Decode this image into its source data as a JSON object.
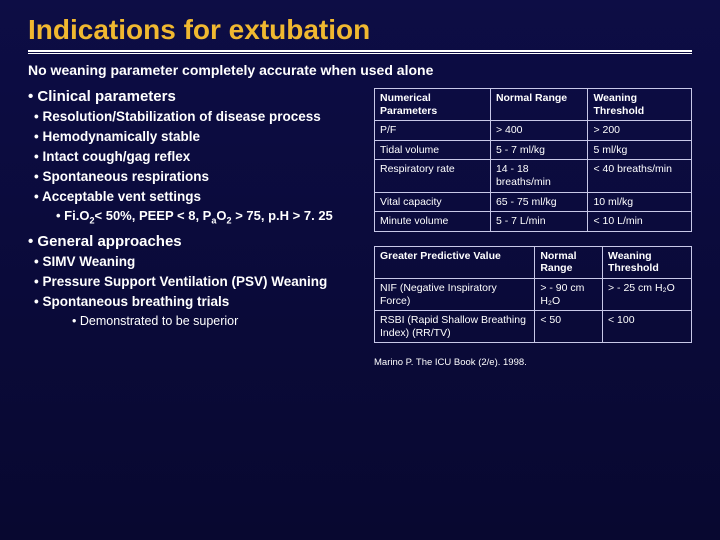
{
  "title": "Indications for extubation",
  "subtitle": "No weaning parameter completely accurate when used alone",
  "left": {
    "sec1": "Clinical parameters",
    "i1": "Resolution/Stabilization of disease process",
    "i2": "Hemodynamically stable",
    "i3": "Intact cough/gag reflex",
    "i4": "Spontaneous respirations",
    "i5": "Acceptable vent settings",
    "i5a_html": "Fi.O<sub>2</sub>&lt; 50%, PEEP &lt; 8, P<sub>a</sub>O<sub>2</sub> &gt; 75, p.H &gt; 7. 25",
    "sec2": "General approaches",
    "g1": "SIMV Weaning",
    "g2": "Pressure Support Ventilation (PSV) Weaning",
    "g3": "Spontaneous breathing trials",
    "g3a": "Demonstrated to be superior"
  },
  "table1": {
    "h1": "Numerical Parameters",
    "h2": "Normal Range",
    "h3": "Weaning Threshold",
    "rows": [
      [
        "P/F",
        "> 400",
        "> 200"
      ],
      [
        "Tidal volume",
        "5 - 7 ml/kg",
        "5 ml/kg"
      ],
      [
        "Respiratory rate",
        "14 - 18 breaths/min",
        "< 40 breaths/min"
      ],
      [
        "Vital capacity",
        "65 - 75 ml/kg",
        "10 ml/kg"
      ],
      [
        "Minute volume",
        "5 - 7 L/min",
        "< 10 L/min"
      ]
    ]
  },
  "table2": {
    "h1": "Greater Predictive Value",
    "h2": "Normal Range",
    "h3": "Weaning Threshold",
    "rows": [
      [
        "NIF (Negative Inspiratory Force)",
        "> - 90 cm H₂O",
        "> - 25 cm H₂O"
      ],
      [
        "RSBI (Rapid Shallow Breathing Index) (RR/TV)",
        "< 50",
        "< 100"
      ]
    ]
  },
  "citation": "Marino P. The ICU Book (2/e). 1998.",
  "colors": {
    "title": "#f0b830",
    "bg_top": "#0d0d45",
    "bg_bottom": "#080830",
    "border": "#c8c8e8",
    "text": "#ffffff"
  }
}
